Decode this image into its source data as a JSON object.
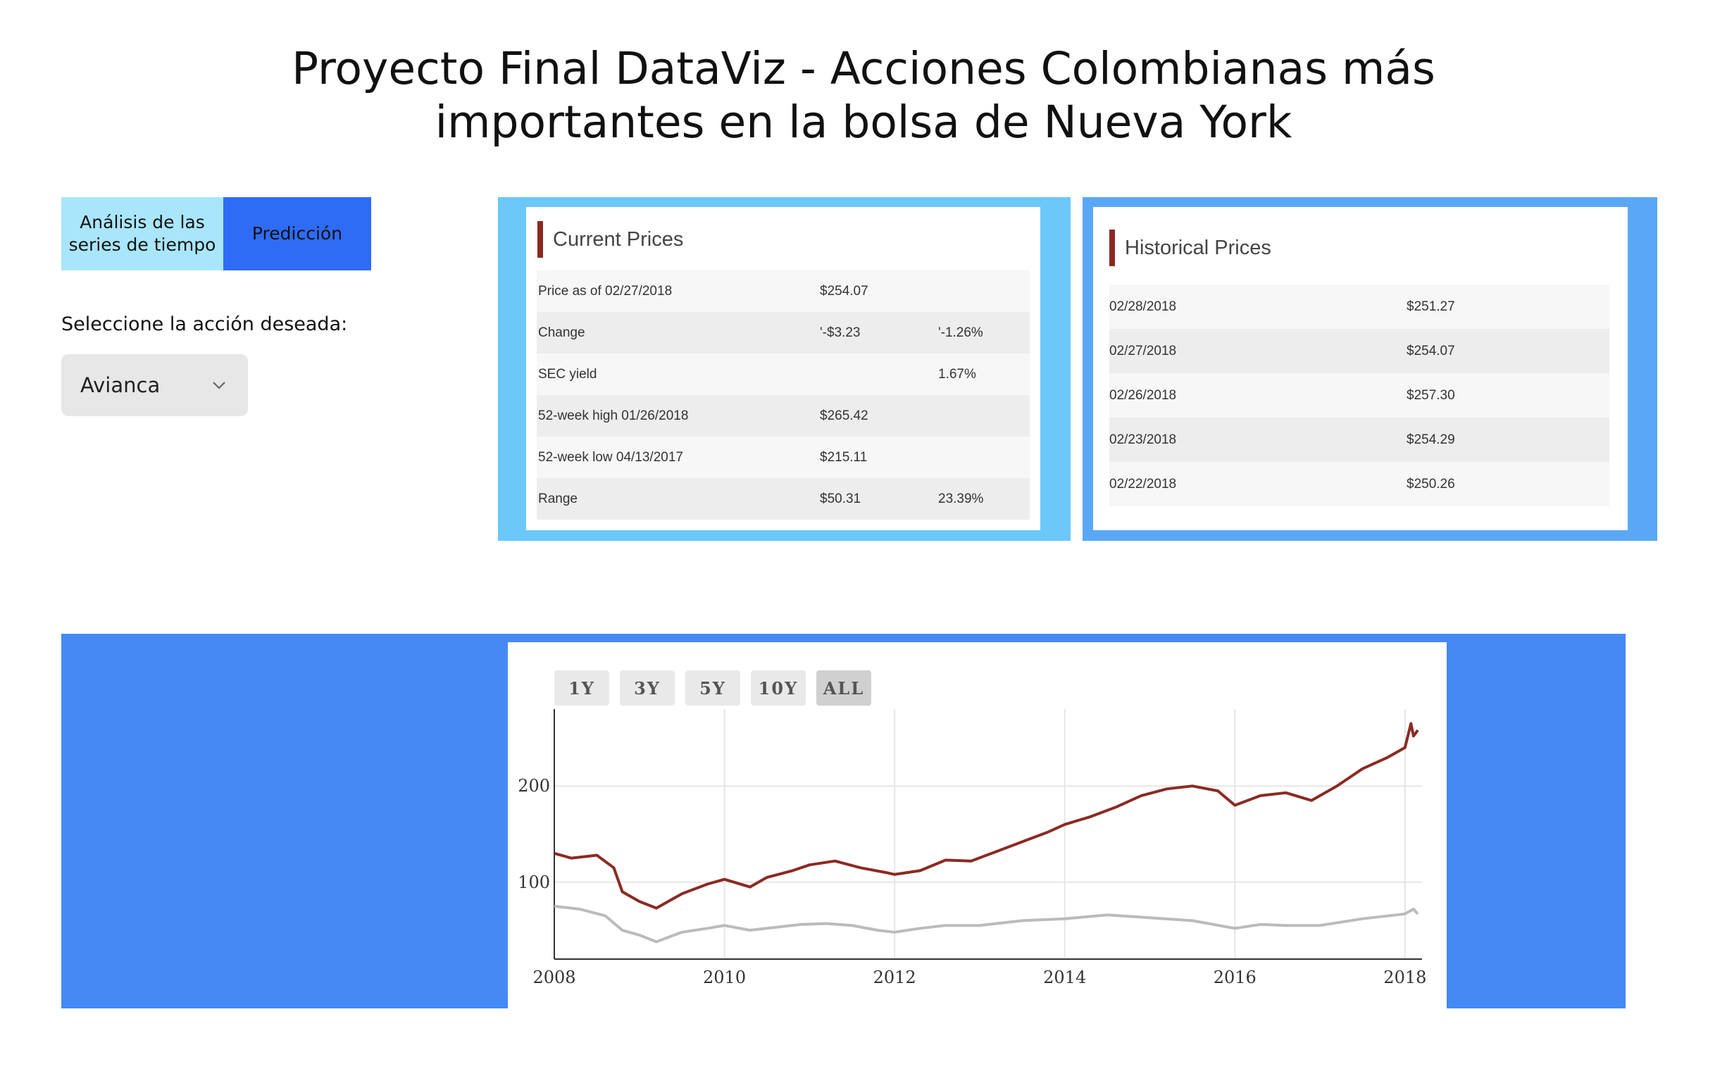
{
  "title": {
    "line1": "Proyecto Final DataViz - Acciones Colombianas más",
    "line2": "importantes en la bolsa de Nueva York"
  },
  "tabs": [
    {
      "label_line1": "Análisis de las",
      "label_line2": "series de tiempo"
    },
    {
      "label": "Predicción"
    }
  ],
  "selector": {
    "label": "Seleccione la acción deseada:",
    "value": "Avianca",
    "icon": "chevron-down-icon"
  },
  "current_prices": {
    "title": "Current Prices",
    "rows": [
      {
        "label": "Price as of 02/27/2018",
        "value": "$254.07",
        "pct": ""
      },
      {
        "label": "Change",
        "value": "'-$3.23",
        "pct": "'-1.26%"
      },
      {
        "label": "SEC yield",
        "value": "",
        "pct": "1.67%"
      },
      {
        "label": "52-week high 01/26/2018",
        "value": "$265.42",
        "pct": ""
      },
      {
        "label": "52-week low 04/13/2017",
        "value": "$215.11",
        "pct": ""
      },
      {
        "label": "Range",
        "value": "$50.31",
        "pct": "23.39%"
      }
    ]
  },
  "historical_prices": {
    "title": "Historical Prices",
    "rows": [
      {
        "date": "02/28/2018",
        "price": "$251.27"
      },
      {
        "date": "02/27/2018",
        "price": "$254.07"
      },
      {
        "date": "02/26/2018",
        "price": "$257.30"
      },
      {
        "date": "02/23/2018",
        "price": "$254.29"
      },
      {
        "date": "02/22/2018",
        "price": "$250.26"
      }
    ]
  },
  "colors": {
    "accent_bar": "#8b2a22",
    "series_main": "#8b2a22",
    "series_secondary": "#bbbbbb",
    "tab_series": "#a9e6fb",
    "tab_prediction": "#2e6cf6"
  },
  "chart_data": {
    "type": "line",
    "range_buttons": [
      "1Y",
      "3Y",
      "5Y",
      "10Y",
      "ALL"
    ],
    "active_range": "ALL",
    "xlim": [
      2008,
      2018.2
    ],
    "ylim": [
      20,
      280
    ],
    "x_ticks": [
      "2008",
      "2010",
      "2012",
      "2014",
      "2016",
      "2018"
    ],
    "y_ticks": [
      "100",
      "200"
    ],
    "grid": true,
    "series": [
      {
        "x": [
          2008.0,
          2008.2,
          2008.5,
          2008.7,
          2008.8,
          2009.0,
          2009.2,
          2009.5,
          2009.8,
          2010.0,
          2010.3,
          2010.5,
          2010.8,
          2011.0,
          2011.3,
          2011.6,
          2011.9,
          2012.0,
          2012.3,
          2012.6,
          2012.9,
          2013.2,
          2013.5,
          2013.8,
          2014.0,
          2014.3,
          2014.6,
          2014.9,
          2015.2,
          2015.5,
          2015.8,
          2016.0,
          2016.3,
          2016.6,
          2016.9,
          2017.2,
          2017.5,
          2017.8,
          2018.0,
          2018.07,
          2018.1,
          2018.15
        ],
        "y": [
          130,
          125,
          128,
          115,
          90,
          80,
          73,
          88,
          98,
          103,
          95,
          105,
          112,
          118,
          122,
          115,
          110,
          108,
          112,
          123,
          122,
          132,
          142,
          152,
          160,
          168,
          178,
          190,
          197,
          200,
          195,
          180,
          190,
          193,
          185,
          200,
          218,
          230,
          240,
          265,
          252,
          258
        ]
      },
      {
        "x": [
          2008.0,
          2008.3,
          2008.6,
          2008.8,
          2009.0,
          2009.2,
          2009.5,
          2009.8,
          2010.0,
          2010.3,
          2010.6,
          2010.9,
          2011.2,
          2011.5,
          2011.8,
          2012.0,
          2012.3,
          2012.6,
          2013.0,
          2013.5,
          2014.0,
          2014.5,
          2015.0,
          2015.5,
          2016.0,
          2016.3,
          2016.6,
          2017.0,
          2017.5,
          2018.0,
          2018.1,
          2018.15
        ],
        "y": [
          75,
          72,
          65,
          50,
          45,
          38,
          48,
          52,
          55,
          50,
          53,
          56,
          57,
          55,
          50,
          48,
          52,
          55,
          55,
          60,
          62,
          66,
          63,
          60,
          52,
          56,
          55,
          55,
          62,
          67,
          72,
          67
        ]
      }
    ]
  }
}
